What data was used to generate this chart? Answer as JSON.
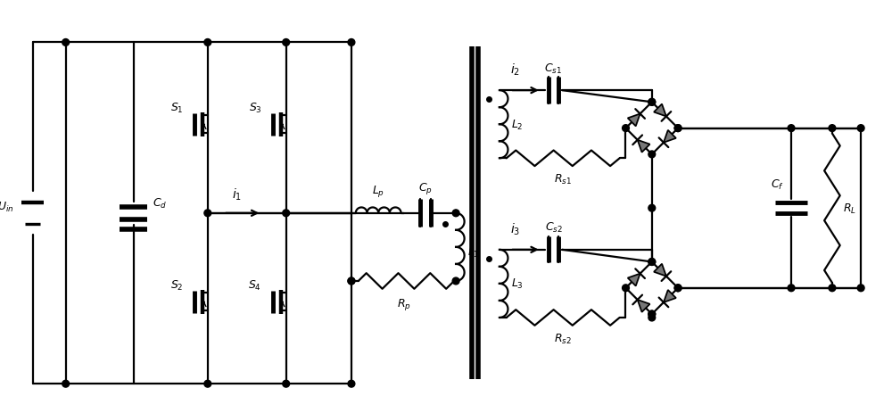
{
  "fig_width": 10.0,
  "fig_height": 4.64,
  "dpi": 100,
  "lw": 1.6,
  "lc": "black",
  "tc": "black",
  "dot_r": 0.04
}
